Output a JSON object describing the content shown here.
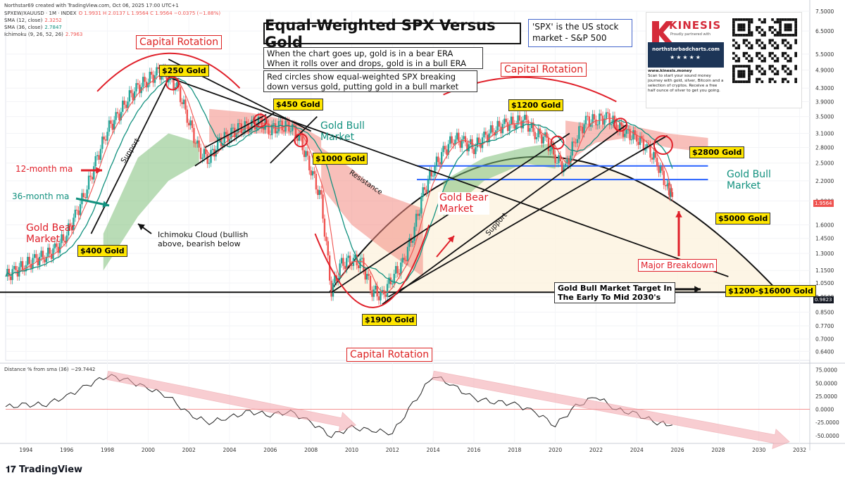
{
  "header": {
    "line1": "Northstar69 created with TradingView.com, Oct 06, 2025 17:00 UTC+1",
    "symbol": "SPXEW/XAUUSD · 1M · INDEX",
    "ohlc": "O 1.9931  H 2.0137  L 1.9564  C 1.9564  −0.0375 (−1.88%)",
    "sma12_label": "SMA (12, close)",
    "sma12_value": "2.3252",
    "sma36_label": "SMA (36, close)",
    "sma36_value": "2.7847",
    "ichimoku_label": "Ichimoku (9, 26, 52, 26)",
    "ichimoku_value": "2.7963"
  },
  "title": "Equal-Weighted SPX Versus Gold",
  "notes": {
    "line1": "When the chart goes up, gold is in a bear ERA",
    "line2": "When it rolls over and drops, gold is in a bull ERA",
    "red1": "Red circles show equal-weighted SPX breaking",
    "red2": "down versus gold, putting gold in a bull market",
    "spx1": "'SPX' is the US stock",
    "spx2": "market - S&P 500"
  },
  "annotations": {
    "capital_rotation": "Capital Rotation",
    "gold_250": "$250 Gold",
    "gold_450": "$450 Gold",
    "gold_1000": "$1000 Gold",
    "gold_1200": "$1200 Gold",
    "gold_2800": "$2800 Gold",
    "gold_5000": "$5000 Gold",
    "gold_400": "$400 Gold",
    "gold_1900": "$1900 Gold",
    "target_range": "$1200-$16000 Gold",
    "support": "Support",
    "resistance": "Resistance",
    "ma12": "12-month ma",
    "ma36": "36-month ma",
    "gold_bear_market_1": "Gold Bear",
    "gold_bear_market_2": "Market",
    "gold_bull_market_1": "Gold Bull",
    "gold_bull_market_2": "Market",
    "ichimoku_note_1": "Ichimoku Cloud (bullish",
    "ichimoku_note_2": "above, bearish below",
    "major_breakdown": "Major Breakdown",
    "target_1": "Gold Bull Market Target In",
    "target_2": "The Early To Mid 2030's"
  },
  "indicator": {
    "label": "Distance % from sma (36)",
    "value": "−29.7442"
  },
  "price_tags": {
    "last": "1.9564",
    "line": "0.9823"
  },
  "colors": {
    "up": "#26a69a",
    "down": "#ef5350",
    "accent_red": "#e0202a",
    "highlight_yellow": "#ffe600",
    "cloud_bull": "#7fc07a",
    "cloud_bear": "#f28b82",
    "blue_lines": "#2962ff",
    "teal": "#12917f"
  },
  "ad": {
    "brand": "KINESIS",
    "tagline": "Proudly partnered with",
    "website": "northstarbadcharts.com",
    "site_url": "www.kinesis.money",
    "text": "Scan to start your sound money journey with gold, silver, Bitcoin and a selection of cryptos. Receive a free half ounce of silver to get you going."
  },
  "footer": {
    "brand": "TradingView"
  },
  "chart_data": {
    "type": "line",
    "title": "Equal-Weighted SPX Versus Gold",
    "xlabel": "",
    "ylabel": "",
    "y_scale": "log",
    "ylim": [
      0.6,
      7.5
    ],
    "xlim": [
      1993.0,
      2032.5
    ],
    "x_ticks": [
      "1994",
      "1996",
      "1998",
      "2000",
      "2002",
      "2004",
      "2006",
      "2008",
      "2010",
      "2012",
      "2014",
      "2016",
      "2018",
      "2020",
      "2022",
      "2024",
      "2026",
      "2028",
      "2030",
      "2032"
    ],
    "y_ticks": [
      "7.5000",
      "6.5000",
      "5.5000",
      "4.9000",
      "4.3000",
      "3.9000",
      "3.5000",
      "3.1000",
      "2.8000",
      "2.5000",
      "2.2000",
      "1.9000",
      "1.6000",
      "1.4500",
      "1.3000",
      "1.1500",
      "1.0500",
      "0.9500",
      "0.8500",
      "0.7700",
      "0.7000",
      "0.6400"
    ],
    "series": [
      {
        "name": "SPXEW/XAUUSD",
        "x": [
          1993.0,
          1993.5,
          1994.0,
          1994.5,
          1995.0,
          1995.5,
          1996.0,
          1996.5,
          1997.0,
          1997.5,
          1998.0,
          1998.5,
          1999.0,
          1999.5,
          2000.0,
          2000.5,
          2001.0,
          2001.5,
          2002.0,
          2002.5,
          2003.0,
          2003.5,
          2004.0,
          2004.5,
          2005.0,
          2005.5,
          2006.0,
          2006.5,
          2007.0,
          2007.5,
          2008.0,
          2008.5,
          2009.0,
          2009.5,
          2010.0,
          2010.5,
          2011.0,
          2011.5,
          2012.0,
          2012.5,
          2013.0,
          2013.5,
          2014.0,
          2014.5,
          2015.0,
          2015.5,
          2016.0,
          2016.5,
          2017.0,
          2017.5,
          2018.0,
          2018.5,
          2019.0,
          2019.5,
          2020.0,
          2020.5,
          2021.0,
          2021.5,
          2022.0,
          2022.5,
          2023.0,
          2023.5,
          2024.0,
          2024.5,
          2025.0,
          2025.5,
          2025.75
        ],
        "y": [
          1.1,
          1.15,
          1.2,
          1.25,
          1.28,
          1.35,
          1.5,
          1.75,
          2.1,
          2.6,
          3.2,
          3.5,
          4.0,
          4.3,
          4.6,
          4.8,
          4.7,
          4.2,
          3.4,
          2.7,
          2.6,
          2.9,
          3.1,
          3.2,
          3.3,
          3.35,
          3.2,
          3.25,
          3.3,
          2.9,
          2.4,
          1.9,
          1.0,
          1.2,
          1.25,
          1.2,
          1.0,
          0.95,
          1.1,
          1.2,
          1.5,
          2.0,
          2.4,
          2.7,
          3.0,
          2.9,
          2.8,
          3.0,
          3.2,
          3.3,
          3.35,
          3.4,
          3.1,
          3.0,
          2.6,
          2.4,
          3.0,
          3.4,
          3.4,
          3.5,
          3.3,
          3.1,
          3.0,
          2.8,
          2.5,
          2.1,
          1.9564
        ]
      },
      {
        "name": "Distance % from sma (36)",
        "x": [
          1993.0,
          1994.0,
          1995.0,
          1996.0,
          1997.0,
          1998.0,
          1999.0,
          2000.0,
          2001.0,
          2002.0,
          2003.0,
          2004.0,
          2005.0,
          2006.0,
          2007.0,
          2008.0,
          2009.0,
          2010.0,
          2011.0,
          2012.0,
          2013.0,
          2014.0,
          2015.0,
          2016.0,
          2017.0,
          2018.0,
          2019.0,
          2020.0,
          2021.0,
          2022.0,
          2023.0,
          2024.0,
          2025.0,
          2025.75
        ],
        "y": [
          5,
          8,
          10,
          25,
          45,
          65,
          55,
          40,
          25,
          -10,
          -25,
          -15,
          -5,
          -10,
          -5,
          -25,
          -50,
          -35,
          -40,
          -45,
          10,
          65,
          45,
          20,
          15,
          10,
          -5,
          -30,
          5,
          25,
          0,
          -10,
          -25,
          -29.7
        ]
      }
    ],
    "indicator_ylim": [
      -65,
      80
    ],
    "indicator_ticks": [
      "75.0000",
      "50.0000",
      "25.0000",
      "0.0000",
      "-25.0000",
      "-50.0000"
    ]
  }
}
